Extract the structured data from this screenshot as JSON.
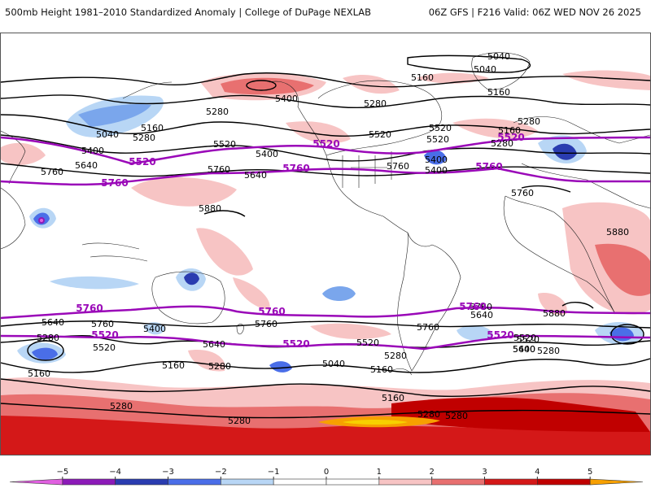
{
  "header": {
    "left_title": "500mb Height 1981–2010 Standardized Anomaly | College of DuPage NEXLAB",
    "right_title": "06Z GFS | F216 Valid: 06Z WED NOV 26 2025"
  },
  "map": {
    "black_contour_labels": [
      {
        "id": "c5040a",
        "text": "5040"
      },
      {
        "id": "c5040b",
        "text": "5040"
      },
      {
        "id": "c5160a",
        "text": "5160"
      },
      {
        "id": "c5160b",
        "text": "5160"
      },
      {
        "id": "c5400a",
        "text": "5400"
      },
      {
        "id": "c5280a",
        "text": "5280"
      },
      {
        "id": "c5280b",
        "text": "5280"
      },
      {
        "id": "c5280c",
        "text": "5280"
      },
      {
        "id": "c5160c",
        "text": "5160"
      },
      {
        "id": "c5040c",
        "text": "5040"
      },
      {
        "id": "c5160d",
        "text": "5160"
      },
      {
        "id": "c5280d",
        "text": "5280"
      },
      {
        "id": "c5400b",
        "text": "5400"
      },
      {
        "id": "c5640a",
        "text": "5640"
      },
      {
        "id": "c5760a",
        "text": "5760"
      },
      {
        "id": "c5520a",
        "text": "5520"
      },
      {
        "id": "c5400c",
        "text": "5400"
      },
      {
        "id": "c5640b",
        "text": "5640"
      },
      {
        "id": "c5520b",
        "text": "5520"
      },
      {
        "id": "c5760b",
        "text": "5760"
      },
      {
        "id": "c5400d",
        "text": "5400"
      },
      {
        "id": "c5280e",
        "text": "5280"
      },
      {
        "id": "c5520c",
        "text": "5520"
      },
      {
        "id": "c5760c",
        "text": "5760"
      },
      {
        "id": "c5400e",
        "text": "5400"
      },
      {
        "id": "c5520d",
        "text": "5520"
      },
      {
        "id": "c5760d",
        "text": "5760"
      },
      {
        "id": "c5880a",
        "text": "5880"
      },
      {
        "id": "c5880b",
        "text": "5880"
      },
      {
        "id": "c5880c",
        "text": "5880"
      },
      {
        "id": "c5640c",
        "text": "5640"
      },
      {
        "id": "c5760e",
        "text": "5760"
      },
      {
        "id": "c5400f",
        "text": "5400"
      },
      {
        "id": "c5640d",
        "text": "5640"
      },
      {
        "id": "c5760f",
        "text": "5760"
      },
      {
        "id": "c5520e",
        "text": "5520"
      },
      {
        "id": "c5640e",
        "text": "5640"
      },
      {
        "id": "c5760g",
        "text": "5760"
      },
      {
        "id": "c5280f",
        "text": "5280"
      },
      {
        "id": "c5160e",
        "text": "5160"
      },
      {
        "id": "c5520f",
        "text": "5520"
      },
      {
        "id": "c5160f",
        "text": "5160"
      },
      {
        "id": "c5280g",
        "text": "5280"
      },
      {
        "id": "c5040d",
        "text": "5040"
      },
      {
        "id": "c5160g",
        "text": "5160"
      },
      {
        "id": "c5520g",
        "text": "5520"
      },
      {
        "id": "c5280h",
        "text": "5280"
      },
      {
        "id": "c5640f",
        "text": "5640"
      },
      {
        "id": "c5760h",
        "text": "5760"
      },
      {
        "id": "c5160h",
        "text": "5160"
      },
      {
        "id": "c5280i",
        "text": "5280"
      },
      {
        "id": "c5280j",
        "text": "5280"
      },
      {
        "id": "c5280k",
        "text": "5280"
      },
      {
        "id": "c5520h",
        "text": "5520"
      },
      {
        "id": "c5400g",
        "text": "5400"
      },
      {
        "id": "c5280l",
        "text": "5280"
      },
      {
        "id": "c5280m",
        "text": "5280"
      }
    ],
    "purple_contour_labels": [
      {
        "id": "p5520a",
        "text": "5520"
      },
      {
        "id": "p5520b",
        "text": "5520"
      },
      {
        "id": "p5520c",
        "text": "5520"
      },
      {
        "id": "p5760a",
        "text": "5760"
      },
      {
        "id": "p5760b",
        "text": "5760"
      },
      {
        "id": "p5760c",
        "text": "5760"
      },
      {
        "id": "p5760d",
        "text": "5760"
      },
      {
        "id": "p5760e",
        "text": "5760"
      },
      {
        "id": "p5760f",
        "text": "5760"
      },
      {
        "id": "p5520d",
        "text": "5520"
      },
      {
        "id": "p5520e",
        "text": "5520"
      },
      {
        "id": "p5520f",
        "text": "5520"
      }
    ]
  },
  "colorbar": {
    "ticks": [
      "−5",
      "−4",
      "−3",
      "−2",
      "−1",
      "0",
      "1",
      "2",
      "3",
      "4",
      "5"
    ],
    "colors": [
      "#e060e0",
      "#8c1ab8",
      "#2a3cb0",
      "#4a6ee8",
      "#b8d6f5",
      "#ffffff",
      "#ffffff",
      "#f7c4c4",
      "#e87070",
      "#d41818",
      "#c00000",
      "#f7a000"
    ]
  }
}
